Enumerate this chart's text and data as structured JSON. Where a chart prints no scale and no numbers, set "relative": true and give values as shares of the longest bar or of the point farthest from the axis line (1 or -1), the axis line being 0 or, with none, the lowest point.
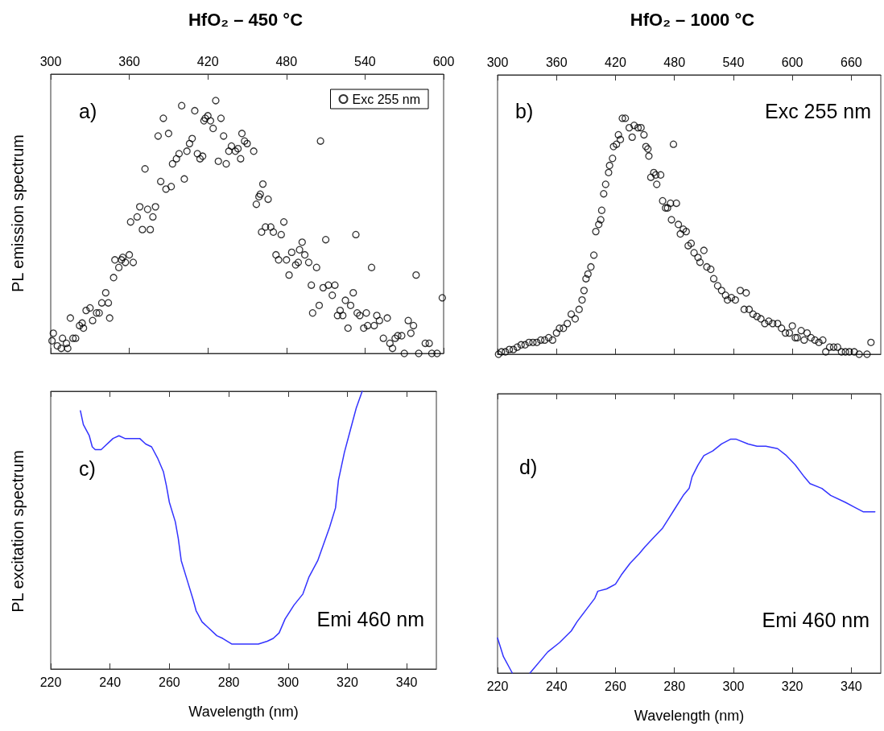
{
  "chart_data": [
    {
      "type": "scatter",
      "title": "HfO₂ – 450 °C",
      "ylabel": "PL emission spectrum",
      "annotations": [
        "a)"
      ],
      "relative": true,
      "marker": "circle",
      "legend": "top right",
      "xlim": [
        300,
        600
      ],
      "xticks": [
        300,
        360,
        420,
        480,
        540,
        600
      ],
      "series": [
        {
          "name": "Exc 255 nm",
          "color": "#000000",
          "x": [
            302,
            301,
            305,
            308,
            309,
            313,
            312,
            315,
            317,
            319,
            322,
            324,
            325,
            327,
            330,
            332,
            335,
            337,
            339,
            342,
            344,
            345,
            348,
            349,
            352,
            354,
            355,
            357,
            360,
            363,
            361,
            366,
            368,
            370,
            374,
            376,
            378,
            380,
            372,
            382,
            384,
            386,
            388,
            390,
            392,
            393,
            396,
            398,
            400,
            402,
            404,
            406,
            408,
            410,
            412,
            414,
            416,
            418,
            417,
            420,
            422,
            424,
            426,
            428,
            430,
            432,
            434,
            436,
            438,
            441,
            443,
            445,
            446,
            448,
            450,
            455,
            457,
            460,
            462,
            459,
            466,
            461,
            464,
            468,
            470,
            472,
            474,
            476,
            478,
            480,
            482,
            484,
            487,
            489,
            490,
            492,
            494,
            497,
            499,
            500,
            503,
            505,
            506,
            508,
            510,
            512,
            515,
            517,
            519,
            521,
            523,
            525,
            527,
            529,
            531,
            533,
            534,
            536,
            539,
            541,
            542,
            545,
            547,
            549,
            551,
            554,
            557,
            559,
            561,
            563,
            565,
            568,
            570,
            573,
            575,
            577,
            579,
            581,
            586,
            589,
            591,
            595,
            599
          ],
          "values": [
            0.08,
            0.05,
            0.03,
            0.02,
            0.06,
            0.02,
            0.04,
            0.14,
            0.06,
            0.06,
            0.11,
            0.12,
            0.1,
            0.17,
            0.18,
            0.13,
            0.16,
            0.16,
            0.2,
            0.24,
            0.2,
            0.14,
            0.3,
            0.37,
            0.34,
            0.37,
            0.38,
            0.36,
            0.39,
            0.36,
            0.52,
            0.54,
            0.58,
            0.49,
            0.57,
            0.49,
            0.54,
            0.58,
            0.73,
            0.86,
            0.68,
            0.93,
            0.65,
            0.87,
            0.66,
            0.75,
            0.77,
            0.79,
            0.98,
            0.69,
            0.8,
            0.83,
            0.85,
            0.96,
            0.79,
            0.77,
            0.78,
            0.93,
            0.92,
            0.94,
            0.92,
            0.89,
            1,
            0.76,
            0.93,
            0.86,
            0.75,
            0.8,
            0.82,
            0.8,
            0.81,
            0.77,
            0.87,
            0.84,
            0.83,
            0.8,
            0.59,
            0.63,
            0.67,
            0.62,
            0.61,
            0.48,
            0.5,
            0.5,
            0.48,
            0.39,
            0.37,
            0.47,
            0.52,
            0.37,
            0.31,
            0.4,
            0.35,
            0.36,
            0.41,
            0.44,
            0.39,
            0.36,
            0.27,
            0.16,
            0.34,
            0.19,
            0.84,
            0.26,
            0.45,
            0.27,
            0.23,
            0.27,
            0.15,
            0.17,
            0.15,
            0.21,
            0.1,
            0.19,
            0.24,
            0.47,
            0.16,
            0.15,
            0.1,
            0.16,
            0.11,
            0.34,
            0.11,
            0.15,
            0.13,
            0.06,
            0.14,
            0.04,
            0.02,
            0.06,
            0.07,
            0.07,
            0,
            0.13,
            0.08,
            0.11,
            0.31,
            0,
            0.04,
            0.04,
            0,
            0,
            0.22
          ]
        }
      ]
    },
    {
      "type": "scatter",
      "title": "HfO₂ – 1000 °C",
      "annotations": [
        "b)",
        "Exc 255 nm"
      ],
      "relative": true,
      "marker": "circle",
      "color": "#000000",
      "xlim": [
        300,
        690
      ],
      "xticks": [
        300,
        360,
        420,
        480,
        540,
        600,
        660
      ],
      "x": [
        301,
        304,
        308,
        312,
        316,
        320,
        324,
        328,
        332,
        336,
        340,
        344,
        348,
        352,
        356,
        360,
        363,
        367,
        371,
        375,
        379,
        383,
        386,
        388,
        390,
        392,
        395,
        398,
        400,
        403,
        405,
        406,
        408,
        410,
        413,
        414,
        417,
        418,
        421,
        423,
        425,
        427,
        430,
        434,
        437,
        439,
        443,
        446,
        449,
        451,
        453,
        454,
        456,
        459,
        461,
        462,
        466,
        468,
        471,
        473,
        476,
        477,
        479,
        482,
        484,
        486,
        489,
        492,
        494,
        497,
        500,
        504,
        506,
        510,
        513,
        517,
        520,
        524,
        528,
        532,
        534,
        538,
        542,
        547,
        551,
        553,
        556,
        560,
        564,
        568,
        572,
        576,
        580,
        585,
        589,
        593,
        597,
        600,
        603,
        605,
        609,
        612,
        615,
        619,
        623,
        627,
        631,
        634,
        638,
        642,
        646,
        650,
        654,
        658,
        663,
        668,
        676,
        680
      ],
      "values": [
        0,
        0.01,
        0.01,
        0.02,
        0.02,
        0.03,
        0.04,
        0.04,
        0.05,
        0.05,
        0.05,
        0.06,
        0.06,
        0.07,
        0.06,
        0.09,
        0.11,
        0.11,
        0.13,
        0.17,
        0.15,
        0.19,
        0.23,
        0.27,
        0.32,
        0.34,
        0.37,
        0.42,
        0.52,
        0.55,
        0.57,
        0.61,
        0.68,
        0.72,
        0.77,
        0.8,
        0.83,
        0.88,
        0.89,
        0.93,
        0.91,
        1,
        1,
        0.96,
        0.92,
        0.97,
        0.96,
        0.96,
        0.93,
        0.88,
        0.87,
        0.84,
        0.75,
        0.77,
        0.76,
        0.72,
        0.76,
        0.65,
        0.62,
        0.62,
        0.64,
        0.57,
        0.89,
        0.64,
        0.55,
        0.51,
        0.53,
        0.52,
        0.46,
        0.47,
        0.43,
        0.41,
        0.39,
        0.44,
        0.37,
        0.36,
        0.32,
        0.29,
        0.27,
        0.25,
        0.23,
        0.24,
        0.23,
        0.27,
        0.19,
        0.26,
        0.19,
        0.17,
        0.16,
        0.15,
        0.13,
        0.14,
        0.13,
        0.13,
        0.11,
        0.09,
        0.09,
        0.12,
        0.07,
        0.07,
        0.1,
        0.06,
        0.09,
        0.07,
        0.06,
        0.05,
        0.06,
        0.01,
        0.03,
        0.03,
        0.03,
        0.01,
        0.01,
        0.01,
        0.01,
        0,
        0,
        0.05
      ]
    },
    {
      "type": "line",
      "ylabel": "PL excitation spectrum",
      "xlabel": "Wavelength (nm)",
      "annotations": [
        "c)",
        "Emi 460 nm"
      ],
      "relative": true,
      "color": "#3333ff",
      "xlim": [
        220,
        350
      ],
      "xticks": [
        220,
        240,
        260,
        280,
        300,
        320,
        340
      ],
      "x": [
        230,
        231,
        233,
        234,
        235,
        237,
        238,
        240,
        241,
        243,
        245,
        248,
        250,
        252,
        254,
        256,
        258,
        259,
        260,
        262,
        263,
        264,
        266,
        268,
        269,
        271,
        273,
        276,
        278,
        281,
        283,
        285,
        287,
        290,
        293,
        295,
        297,
        299,
        302,
        305,
        307,
        310,
        312,
        314,
        316,
        317,
        319,
        321,
        323,
        325
      ],
      "values": [
        0.93,
        0.88,
        0.84,
        0.8,
        0.79,
        0.79,
        0.8,
        0.82,
        0.83,
        0.84,
        0.83,
        0.83,
        0.83,
        0.81,
        0.8,
        0.76,
        0.71,
        0.66,
        0.6,
        0.53,
        0.47,
        0.39,
        0.32,
        0.25,
        0.21,
        0.17,
        0.15,
        0.12,
        0.11,
        0.09,
        0.09,
        0.09,
        0.09,
        0.09,
        0.1,
        0.11,
        0.13,
        0.18,
        0.23,
        0.27,
        0.33,
        0.39,
        0.45,
        0.51,
        0.58,
        0.68,
        0.78,
        0.86,
        0.94,
        1
      ]
    },
    {
      "type": "line",
      "xlabel": "Wavelength (nm)",
      "annotations": [
        "d)",
        "Emi 460 nm"
      ],
      "relative": true,
      "color": "#3333ff",
      "xlim": [
        220,
        350
      ],
      "xticks": [
        220,
        240,
        260,
        280,
        300,
        320,
        340
      ],
      "x": [
        220,
        222,
        225,
        228,
        231,
        237,
        241,
        245,
        247,
        250,
        253,
        254,
        257,
        260,
        262,
        265,
        268,
        270,
        273,
        276,
        278,
        280,
        283,
        285,
        286,
        288,
        290,
        293,
        296,
        299,
        301,
        305,
        308,
        311,
        315,
        318,
        321,
        324,
        326,
        330,
        333,
        338,
        341,
        344,
        348
      ],
      "values": [
        0.15,
        0.07,
        0,
        null,
        0,
        0.09,
        0.13,
        0.18,
        0.22,
        0.27,
        0.32,
        0.35,
        0.36,
        0.38,
        0.42,
        0.47,
        0.51,
        0.54,
        0.58,
        0.62,
        0.66,
        0.7,
        0.76,
        0.79,
        0.84,
        0.89,
        0.93,
        0.95,
        0.98,
        1,
        1,
        0.98,
        0.97,
        0.97,
        0.96,
        0.93,
        0.89,
        0.84,
        0.81,
        0.79,
        0.76,
        0.73,
        0.71,
        0.69,
        0.69
      ]
    }
  ]
}
